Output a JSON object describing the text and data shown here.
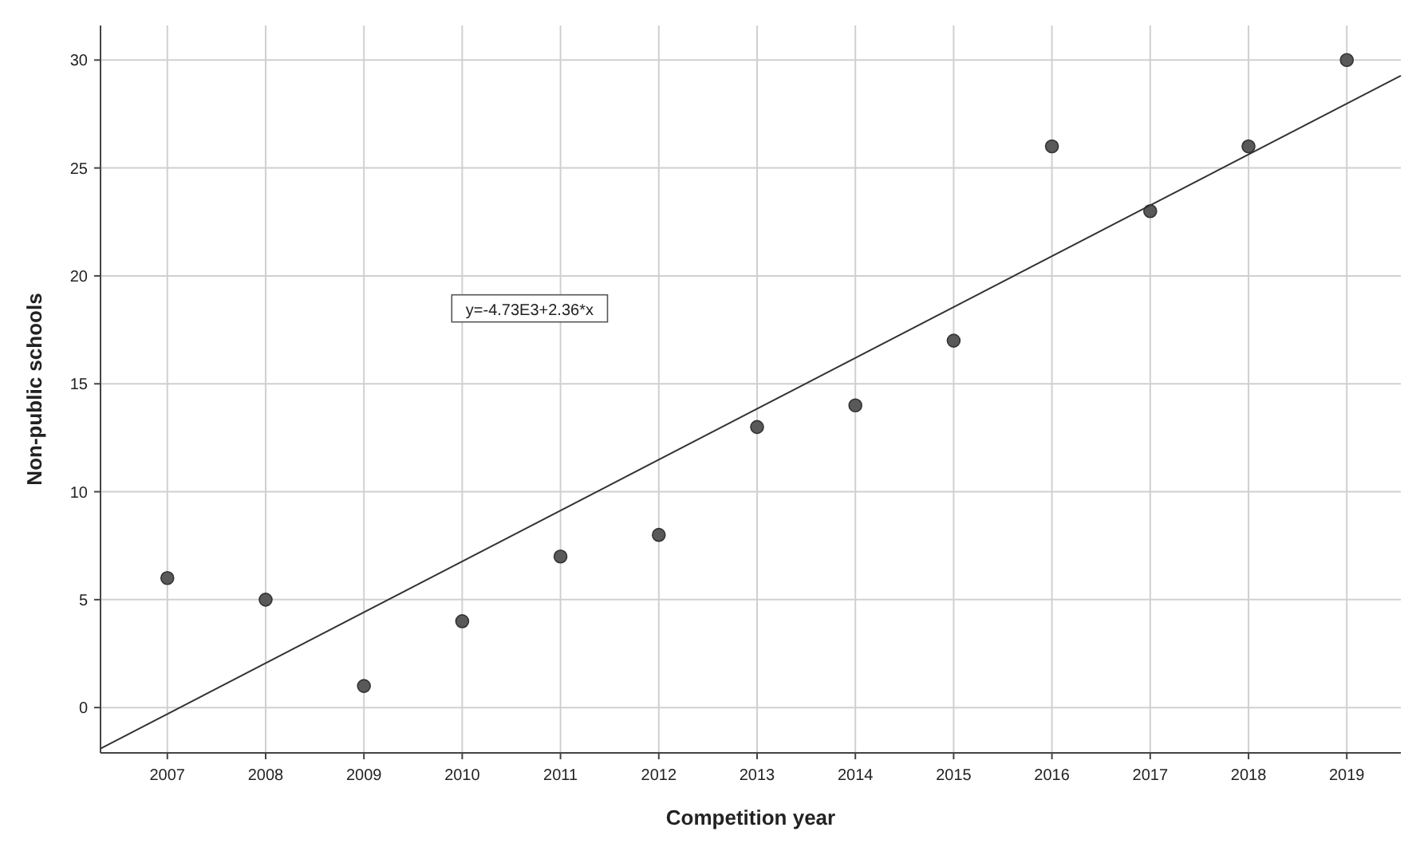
{
  "chart_data": {
    "type": "scatter",
    "xlabel": "Competition year",
    "ylabel": "Non-public schools",
    "xlim": [
      2006.32,
      2019.55
    ],
    "ylim": [
      -2.1,
      31.6
    ],
    "xticks": [
      2007,
      2008,
      2009,
      2010,
      2011,
      2012,
      2013,
      2014,
      2015,
      2016,
      2017,
      2018,
      2019
    ],
    "yticks": [
      0,
      5,
      10,
      15,
      20,
      25,
      30
    ],
    "grid": true,
    "marker": "circle",
    "series": [
      {
        "color": "#595959",
        "x": [
          2007,
          2008,
          2009,
          2010,
          2011,
          2012,
          2013,
          2014,
          2015,
          2016,
          2017,
          2018,
          2019
        ],
        "values": [
          6,
          5,
          1,
          4,
          7,
          8,
          13,
          14,
          17,
          26,
          23,
          26,
          30
        ]
      },
      {
        "type": "line",
        "color": "#333333",
        "marker": "none",
        "x": [
          2006.32,
          2019.55
        ],
        "values": [
          -1.9,
          29.28
        ]
      }
    ],
    "annotations": [
      "y=-4.73E3+2.36*x"
    ]
  }
}
